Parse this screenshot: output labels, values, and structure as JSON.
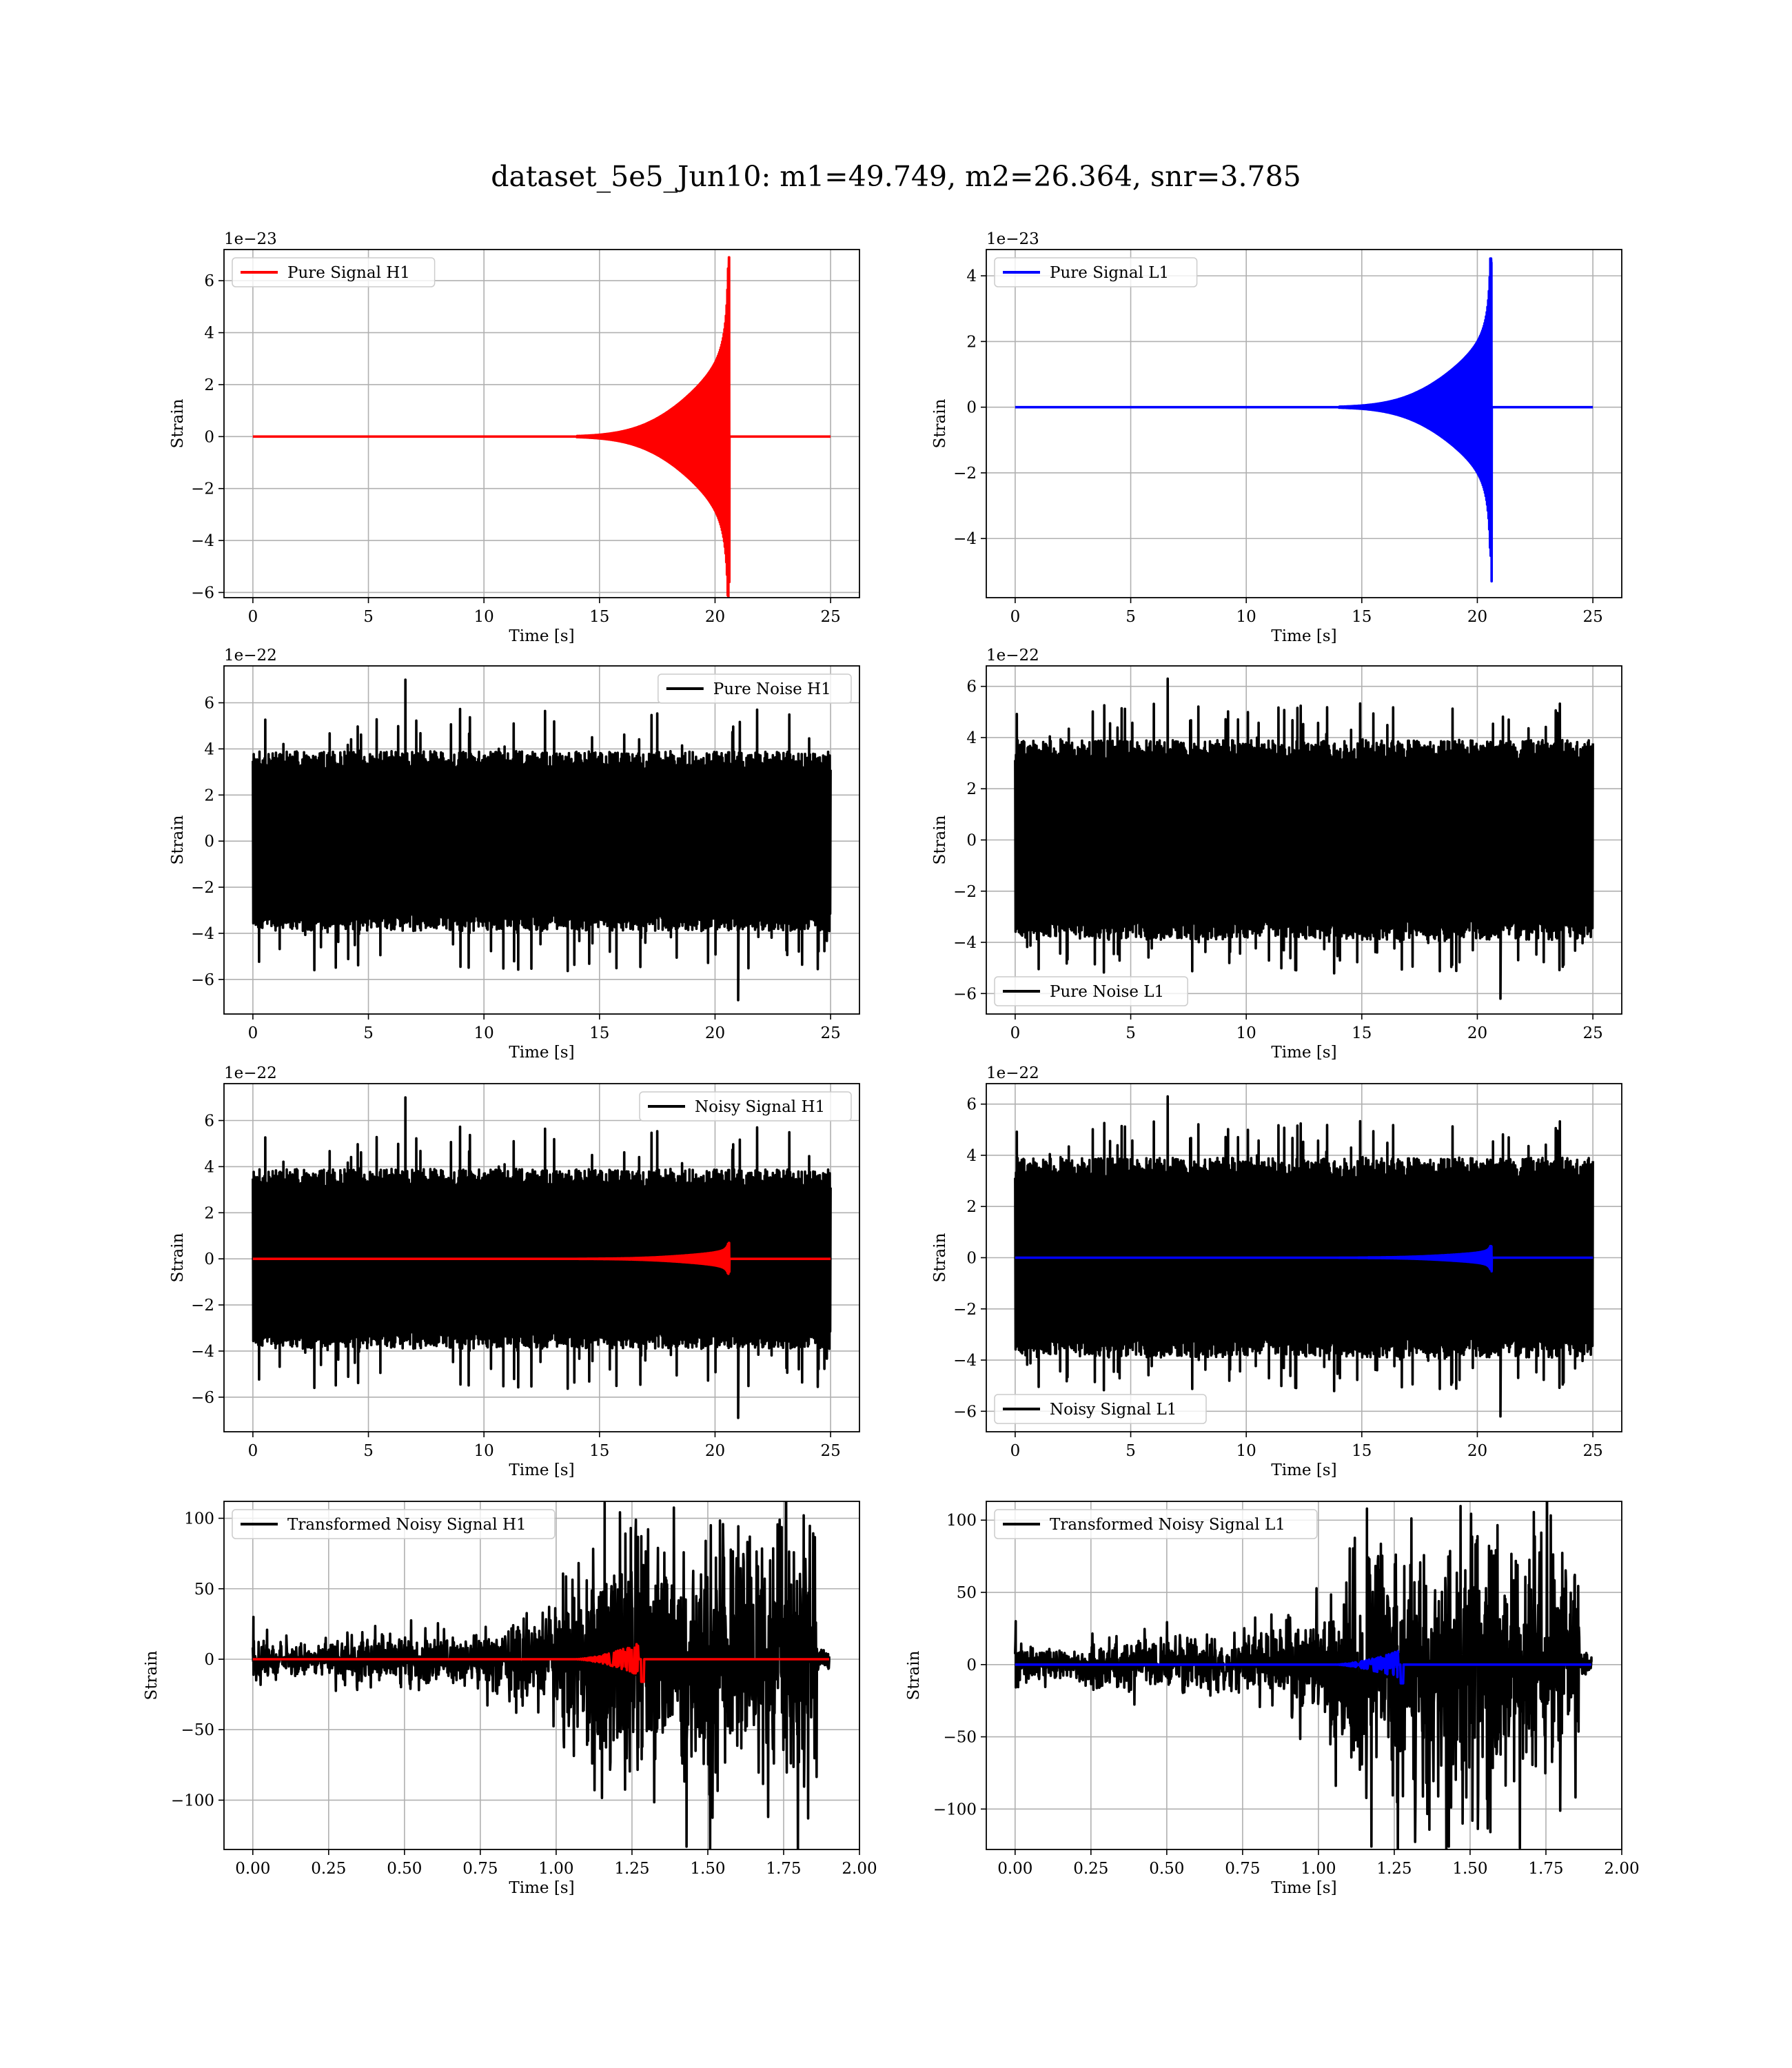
{
  "figure": {
    "suptitle": "dataset_5e5_Jun10: m1=49.749, m2=26.364, snr=3.785"
  },
  "chart_data": [
    {
      "type": "line",
      "legend": [
        "Pure Signal H1"
      ],
      "legend_position": "upper left",
      "xlabel": "Time [s]",
      "ylabel": "Strain",
      "offset_text": "1e−23",
      "xlim": [
        -1.25,
        26.25
      ],
      "ylim": [
        -6.2,
        7.2
      ],
      "xticks": [
        0,
        5,
        10,
        15,
        20,
        25
      ],
      "xticklabels": [
        "0",
        "5",
        "10",
        "15",
        "20",
        "25"
      ],
      "yticks": [
        -6,
        -4,
        -2,
        0,
        2,
        4,
        6
      ],
      "yticklabels": [
        "−6",
        "−4",
        "−2",
        "0",
        "2",
        "4",
        "6"
      ],
      "grid": true,
      "series": [
        {
          "name": "Pure Signal H1",
          "color": "#ff0000",
          "kind": "chirp",
          "x_range": [
            0,
            25
          ],
          "merger": 20.6,
          "onset": 14.0,
          "peak": 6.9,
          "trough": -5.6,
          "plateau": 2.0
        }
      ]
    },
    {
      "type": "line",
      "legend": [
        "Pure Signal L1"
      ],
      "legend_position": "upper left",
      "xlabel": "Time [s]",
      "ylabel": "Strain",
      "offset_text": "1e−23",
      "xlim": [
        -1.25,
        26.25
      ],
      "ylim": [
        -5.8,
        4.8
      ],
      "xticks": [
        0,
        5,
        10,
        15,
        20,
        25
      ],
      "xticklabels": [
        "0",
        "5",
        "10",
        "15",
        "20",
        "25"
      ],
      "yticks": [
        -4,
        -2,
        0,
        2,
        4
      ],
      "yticklabels": [
        "−4",
        "−2",
        "0",
        "2",
        "4"
      ],
      "grid": true,
      "series": [
        {
          "name": "Pure Signal L1",
          "color": "#0000ff",
          "kind": "chirp",
          "x_range": [
            0,
            25
          ],
          "merger": 20.6,
          "onset": 14.0,
          "peak": 4.4,
          "trough": -5.3,
          "plateau": 1.4
        }
      ]
    },
    {
      "type": "line",
      "legend": [
        "Pure Noise H1"
      ],
      "legend_position": "upper right",
      "xlabel": "Time [s]",
      "ylabel": "Strain",
      "offset_text": "1e−22",
      "xlim": [
        -1.25,
        26.25
      ],
      "ylim": [
        -7.5,
        7.6
      ],
      "xticks": [
        0,
        5,
        10,
        15,
        20,
        25
      ],
      "xticklabels": [
        "0",
        "5",
        "10",
        "15",
        "20",
        "25"
      ],
      "yticks": [
        -6,
        -4,
        -2,
        0,
        2,
        4,
        6
      ],
      "yticklabels": [
        "−6",
        "−4",
        "−2",
        "0",
        "2",
        "4",
        "6"
      ],
      "grid": true,
      "series": [
        {
          "name": "Pure Noise H1",
          "color": "#000000",
          "kind": "noise",
          "x_range": [
            0,
            25
          ],
          "band": 3.9,
          "spike_max": 7.0,
          "spike_min": -6.9,
          "seed": 11
        }
      ]
    },
    {
      "type": "line",
      "legend": [
        "Pure Noise L1"
      ],
      "legend_position": "lower left",
      "xlabel": "Time [s]",
      "ylabel": "Strain",
      "offset_text": "1e−22",
      "xlim": [
        -1.25,
        26.25
      ],
      "ylim": [
        -6.8,
        6.8
      ],
      "xticks": [
        0,
        5,
        10,
        15,
        20,
        25
      ],
      "xticklabels": [
        "0",
        "5",
        "10",
        "15",
        "20",
        "25"
      ],
      "yticks": [
        -6,
        -4,
        -2,
        0,
        2,
        4,
        6
      ],
      "yticklabels": [
        "−6",
        "−4",
        "−2",
        "0",
        "2",
        "4",
        "6"
      ],
      "grid": true,
      "series": [
        {
          "name": "Pure Noise L1",
          "color": "#000000",
          "kind": "noise",
          "x_range": [
            0,
            25
          ],
          "band": 3.9,
          "spike_max": 6.3,
          "spike_min": -6.2,
          "seed": 23
        }
      ]
    },
    {
      "type": "line",
      "legend": [
        "Noisy Signal H1"
      ],
      "legend_position": "upper right",
      "xlabel": "Time [s]",
      "ylabel": "Strain",
      "offset_text": "1e−22",
      "xlim": [
        -1.25,
        26.25
      ],
      "ylim": [
        -7.5,
        7.6
      ],
      "xticks": [
        0,
        5,
        10,
        15,
        20,
        25
      ],
      "xticklabels": [
        "0",
        "5",
        "10",
        "15",
        "20",
        "25"
      ],
      "yticks": [
        -6,
        -4,
        -2,
        0,
        2,
        4,
        6
      ],
      "yticklabels": [
        "−6",
        "−4",
        "−2",
        "0",
        "2",
        "4",
        "6"
      ],
      "grid": true,
      "series": [
        {
          "name": "Noisy Signal H1",
          "color": "#000000",
          "kind": "noise",
          "x_range": [
            0,
            25
          ],
          "band": 3.9,
          "spike_max": 7.0,
          "spike_min": -6.9,
          "seed": 11
        },
        {
          "color": "#ff0000",
          "kind": "chirp",
          "x_range": [
            0,
            25
          ],
          "merger": 20.6,
          "onset": 14.0,
          "peak": 0.69,
          "trough": -0.56,
          "plateau": 0.2
        }
      ]
    },
    {
      "type": "line",
      "legend": [
        "Noisy Signal L1"
      ],
      "legend_position": "lower left",
      "xlabel": "Time [s]",
      "ylabel": "Strain",
      "offset_text": "1e−22",
      "xlim": [
        -1.25,
        26.25
      ],
      "ylim": [
        -6.8,
        6.8
      ],
      "xticks": [
        0,
        5,
        10,
        15,
        20,
        25
      ],
      "xticklabels": [
        "0",
        "5",
        "10",
        "15",
        "20",
        "25"
      ],
      "yticks": [
        -6,
        -4,
        -2,
        0,
        2,
        4,
        6
      ],
      "yticklabels": [
        "−6",
        "−4",
        "−2",
        "0",
        "2",
        "4",
        "6"
      ],
      "grid": true,
      "series": [
        {
          "name": "Noisy Signal L1",
          "color": "#000000",
          "kind": "noise",
          "x_range": [
            0,
            25
          ],
          "band": 3.9,
          "spike_max": 6.3,
          "spike_min": -6.2,
          "seed": 23
        },
        {
          "color": "#0000ff",
          "kind": "chirp",
          "x_range": [
            0,
            25
          ],
          "merger": 20.6,
          "onset": 14.0,
          "peak": 0.44,
          "trough": -0.53,
          "plateau": 0.14
        }
      ]
    },
    {
      "type": "line",
      "legend": [
        "Transformed Noisy Signal H1"
      ],
      "legend_position": "upper left",
      "xlabel": "Time [s]",
      "ylabel": "Strain",
      "offset_text": "",
      "xlim": [
        -0.095,
        2.0
      ],
      "ylim": [
        -135,
        112
      ],
      "xticks": [
        0,
        0.25,
        0.5,
        0.75,
        1.0,
        1.25,
        1.5,
        1.75,
        2.0
      ],
      "xticklabels": [
        "0.00",
        "0.25",
        "0.50",
        "0.75",
        "1.00",
        "1.25",
        "1.50",
        "1.75",
        "2.00"
      ],
      "yticks": [
        -100,
        -50,
        0,
        50,
        100
      ],
      "yticklabels": [
        "−100",
        "−50",
        "0",
        "50",
        "100"
      ],
      "grid": true,
      "series": [
        {
          "name": "Transformed Noisy Signal H1",
          "color": "#000000",
          "kind": "whitened",
          "x_range": [
            0,
            1.9
          ],
          "seed": 37,
          "max": 111,
          "min": -133
        },
        {
          "color": "#ff0000",
          "kind": "wchirp",
          "x_range": [
            0,
            1.9
          ],
          "merger": 1.28,
          "peak": 12,
          "trough": -16
        }
      ]
    },
    {
      "type": "line",
      "legend": [
        "Transformed Noisy Signal L1"
      ],
      "legend_position": "upper left",
      "xlabel": "Time [s]",
      "ylabel": "Strain",
      "offset_text": "",
      "xlim": [
        -0.095,
        2.0
      ],
      "ylim": [
        -128,
        113
      ],
      "xticks": [
        0,
        0.25,
        0.5,
        0.75,
        1.0,
        1.25,
        1.5,
        1.75,
        2.0
      ],
      "xticklabels": [
        "0.00",
        "0.25",
        "0.50",
        "0.75",
        "1.00",
        "1.25",
        "1.50",
        "1.75",
        "2.00"
      ],
      "yticks": [
        -100,
        -50,
        0,
        50,
        100
      ],
      "yticklabels": [
        "−100",
        "−50",
        "0",
        "50",
        "100"
      ],
      "grid": true,
      "series": [
        {
          "name": "Transformed Noisy Signal L1",
          "color": "#000000",
          "kind": "whitened",
          "x_range": [
            0,
            1.9
          ],
          "seed": 53,
          "max": 108,
          "min": -126
        },
        {
          "color": "#0000ff",
          "kind": "wchirp",
          "x_range": [
            0,
            1.9
          ],
          "merger": 1.27,
          "peak": 10,
          "trough": -13
        }
      ]
    }
  ]
}
